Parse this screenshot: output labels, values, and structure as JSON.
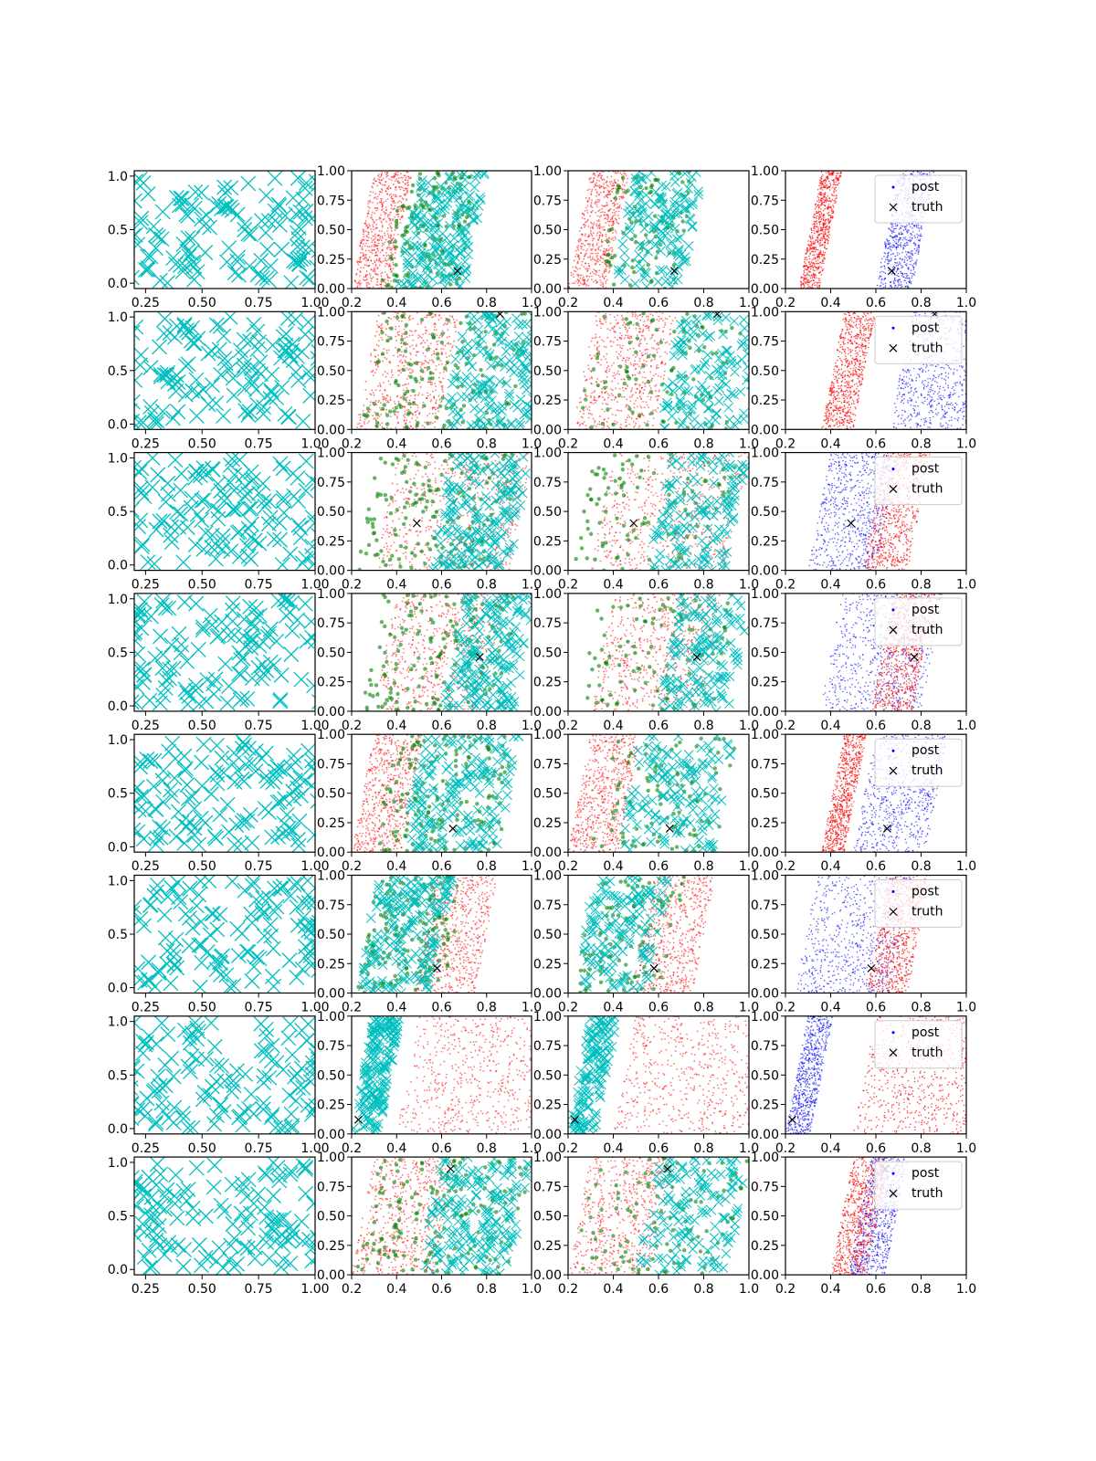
{
  "chart_data": {
    "type": "scatter",
    "layout": {
      "rows": 8,
      "cols": 4
    },
    "colors": {
      "uniform_samples": "#00bfbf",
      "post": "#0000ff",
      "prior": "#ff0000",
      "accepted": "#008000",
      "truth": "#000000"
    },
    "legend": {
      "placement": "upper right",
      "entries": [
        {
          "label": "post",
          "marker": "dot",
          "color": "#0000ff"
        },
        {
          "label": "truth",
          "marker": "x",
          "color": "#000000"
        }
      ]
    },
    "col0": {
      "xticks": [
        "0.25",
        "0.50",
        "0.75",
        "1.00"
      ],
      "yticks": [
        "0.0",
        "0.5",
        "1.0"
      ],
      "xlim": [
        0.2,
        1.0
      ],
      "ylim": [
        -0.05,
        1.05
      ]
    },
    "cols123": {
      "xticks": [
        "0.2",
        "0.4",
        "0.6",
        "0.8",
        "1.0"
      ],
      "yticks": [
        "0.00",
        "0.25",
        "0.50",
        "0.75",
        "1.00"
      ],
      "xlim": [
        0.2,
        1.0
      ],
      "ylim": [
        0.0,
        1.0
      ]
    },
    "truth_points": [
      {
        "x": 0.67,
        "y": 0.15
      },
      {
        "x": 0.86,
        "y": 0.98
      },
      {
        "x": 0.49,
        "y": 0.4
      },
      {
        "x": 0.77,
        "y": 0.46
      },
      {
        "x": 0.65,
        "y": 0.2
      },
      {
        "x": 0.58,
        "y": 0.21
      },
      {
        "x": 0.23,
        "y": 0.12
      },
      {
        "x": 0.64,
        "y": 0.9
      }
    ],
    "rows": [
      {
        "red_band": [
          0.2,
          0.37
        ],
        "cyan_band": [
          0.4,
          0.7
        ],
        "green_band": [
          0.33,
          0.67
        ],
        "blue_band": [
          0.6,
          0.76
        ],
        "red_post": [
          0.26,
          0.35
        ],
        "legend": true
      },
      {
        "red_band": [
          0.22,
          0.58
        ],
        "cyan_band": [
          0.6,
          1.0
        ],
        "green_band": [
          0.24,
          0.9
        ],
        "blue_band": [
          0.66,
          1.0
        ],
        "red_post": [
          0.36,
          0.5
        ],
        "legend": true
      },
      {
        "red_band": [
          0.3,
          0.9
        ],
        "cyan_band": [
          0.55,
          0.9
        ],
        "green_band": [
          0.22,
          0.85
        ],
        "blue_band": [
          0.3,
          0.6
        ],
        "red_post": [
          0.54,
          0.74
        ],
        "legend": true
      },
      {
        "red_band": [
          0.3,
          0.78
        ],
        "cyan_band": [
          0.6,
          0.92
        ],
        "green_band": [
          0.24,
          0.85
        ],
        "blue_band": [
          0.35,
          0.8
        ],
        "red_post": [
          0.58,
          0.76
        ],
        "legend": true
      },
      {
        "red_band": [
          0.2,
          0.42
        ],
        "cyan_band": [
          0.42,
          0.85
        ],
        "green_band": [
          0.3,
          0.85
        ],
        "blue_band": [
          0.5,
          0.82
        ],
        "red_post": [
          0.36,
          0.46
        ],
        "legend": true
      },
      {
        "red_band": [
          0.48,
          0.75
        ],
        "cyan_band": [
          0.22,
          0.55
        ],
        "green_band": [
          0.22,
          0.62
        ],
        "blue_band": [
          0.24,
          0.66
        ],
        "red_post": [
          0.56,
          0.74
        ],
        "legend": true
      },
      {
        "red_band": [
          0.4,
          1.0
        ],
        "cyan_band": [
          0.2,
          0.32
        ],
        "green_band": [
          0.0,
          0.0
        ],
        "blue_band": [
          0.2,
          0.31
        ],
        "red_post": [
          0.5,
          1.0
        ],
        "legend": true
      },
      {
        "red_band": [
          0.2,
          0.56
        ],
        "cyan_band": [
          0.5,
          0.9
        ],
        "green_band": [
          0.22,
          0.9
        ],
        "blue_band": [
          0.48,
          0.64
        ],
        "red_post": [
          0.4,
          0.56
        ],
        "legend": true
      }
    ]
  }
}
